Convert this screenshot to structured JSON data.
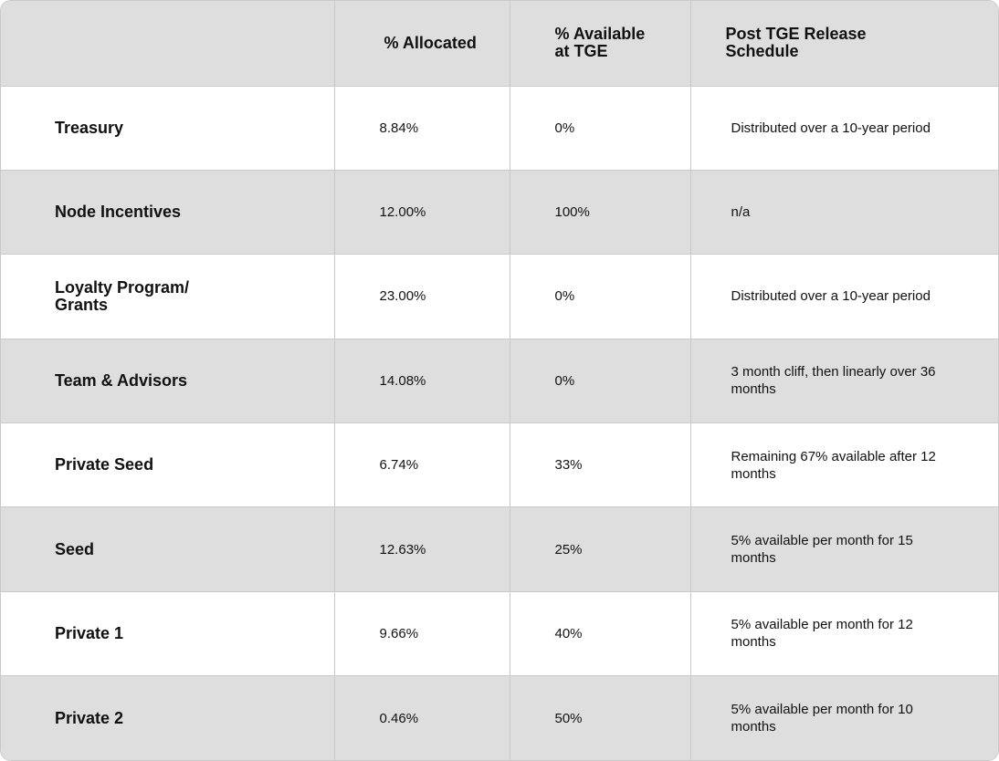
{
  "headers": [
    "",
    "% Allocated",
    "% Available\nat TGE",
    "Post TGE Release\nSchedule"
  ],
  "rows": [
    {
      "category": "Treasury",
      "allocated": "8.84%",
      "available": "0%",
      "schedule": "Distributed over a 10-year period"
    },
    {
      "category": "Node Incentives",
      "allocated": "12.00%",
      "available": "100%",
      "schedule": "n/a"
    },
    {
      "category": "Loyalty Program/\nGrants",
      "allocated": "23.00%",
      "available": "0%",
      "schedule": "Distributed over a 10-year period"
    },
    {
      "category": "Team & Advisors",
      "allocated": "14.08%",
      "available": "0%",
      "schedule": "3 month cliff, then linearly over 36 months"
    },
    {
      "category": "Private Seed",
      "allocated": "6.74%",
      "available": "33%",
      "schedule": "Remaining 67% available after 12 months"
    },
    {
      "category": "Seed",
      "allocated": "12.63%",
      "available": "25%",
      "schedule": "5% available per month for 15 months"
    },
    {
      "category": "Private 1",
      "allocated": "9.66%",
      "available": "40%",
      "schedule": "5% available per month for 12 months"
    },
    {
      "category": "Private 2",
      "allocated": "0.46%",
      "available": "50%",
      "schedule": "5% available per month for 10 months"
    }
  ],
  "colors": {
    "header_bg": "#dedede",
    "row_shade": "#dedede",
    "row_plain": "#ffffff",
    "border": "#c9c9c9",
    "text": "#111111"
  }
}
